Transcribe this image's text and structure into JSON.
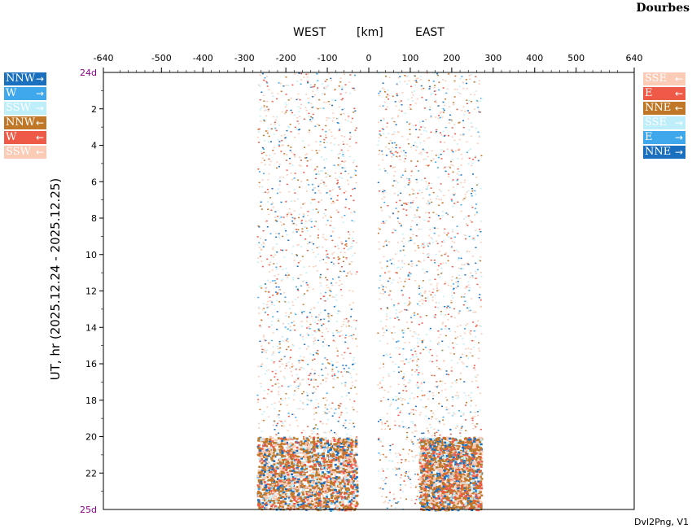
{
  "header": {
    "station": "Dourbes",
    "west": "WEST",
    "unit": "[km]",
    "east": "EAST"
  },
  "footer": "Dvl2Png, V1",
  "legend_left": [
    {
      "label": "NNW",
      "arrow": "→",
      "color": "#1a6fbf"
    },
    {
      "label": "W",
      "arrow": "→",
      "color": "#3fa8ec"
    },
    {
      "label": "SSW",
      "arrow": "→",
      "color": "#bfeefb"
    },
    {
      "label": "NNW",
      "arrow": "←",
      "color": "#c07828"
    },
    {
      "label": "W",
      "arrow": "←",
      "color": "#ef5a48"
    },
    {
      "label": "SSW",
      "arrow": "←",
      "color": "#fbcbb6"
    }
  ],
  "legend_right": [
    {
      "label": "SSE",
      "arrow": "←",
      "color": "#fbcbb6"
    },
    {
      "label": "E",
      "arrow": "←",
      "color": "#ef5a48"
    },
    {
      "label": "NNE",
      "arrow": "←",
      "color": "#c07828"
    },
    {
      "label": "SSE",
      "arrow": "→",
      "color": "#bfeefb"
    },
    {
      "label": "E",
      "arrow": "→",
      "color": "#3fa8ec"
    },
    {
      "label": "NNE",
      "arrow": "→",
      "color": "#1a6fbf"
    }
  ],
  "chart_data": {
    "type": "heatmap",
    "xlabel": "[km]",
    "ylabel": "UT, hr (2025.12.24 - 2025.12.25)",
    "xlim": [
      -640,
      640
    ],
    "ylim": [
      0,
      24
    ],
    "x_ticks": [
      -640,
      -500,
      -400,
      -300,
      -200,
      -100,
      0,
      100,
      200,
      300,
      400,
      500,
      640
    ],
    "y_ticks": [
      2,
      4,
      6,
      8,
      10,
      12,
      14,
      16,
      18,
      20,
      22
    ],
    "y_start_label": "24d",
    "y_end_label": "25d",
    "colors": {
      "axis_day": "#8b008b"
    },
    "regions": [
      {
        "name": "west",
        "x_range": [
          -270,
          -30
        ],
        "y_range": [
          0,
          24
        ]
      },
      {
        "name": "east",
        "x_range": [
          20,
          270
        ],
        "y_range": [
          0,
          24
        ]
      }
    ],
    "dense_zones": [
      {
        "x_range": [
          120,
          270
        ],
        "y_range": [
          20,
          24
        ]
      },
      {
        "x_range": [
          -270,
          -30
        ],
        "y_range": [
          20,
          24
        ]
      }
    ],
    "grid": false
  }
}
